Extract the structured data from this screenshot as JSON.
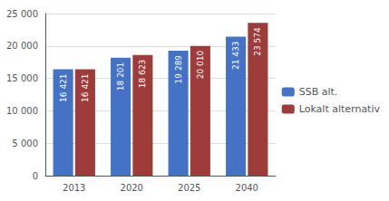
{
  "chart_data": {
    "type": "bar",
    "categories": [
      "2013",
      "2020",
      "2025",
      "2040"
    ],
    "series": [
      {
        "name": "SSB alt.",
        "color": "#4472C4",
        "values": [
          16421,
          18201,
          19289,
          21433
        ],
        "value_labels": [
          "16 421",
          "18 201",
          "19 289",
          "21 433"
        ]
      },
      {
        "name": "Lokalt alternativ",
        "color": "#9E3B3B",
        "values": [
          16421,
          18623,
          20010,
          23574
        ],
        "value_labels": [
          "16 421",
          "18 623",
          "20 010",
          "23 574"
        ]
      }
    ],
    "ylim": [
      0,
      25000
    ],
    "yticks": [
      0,
      {
        "value": 5000,
        "label": "5 000"
      },
      {
        "value": 10000,
        "label": "10 000"
      },
      {
        "value": 15000,
        "label": "15 000"
      },
      {
        "value": 20000,
        "label": "20 000"
      },
      {
        "value": 25000,
        "label": "25 000"
      }
    ],
    "grid": true,
    "legend": "right",
    "data_labels": true
  }
}
